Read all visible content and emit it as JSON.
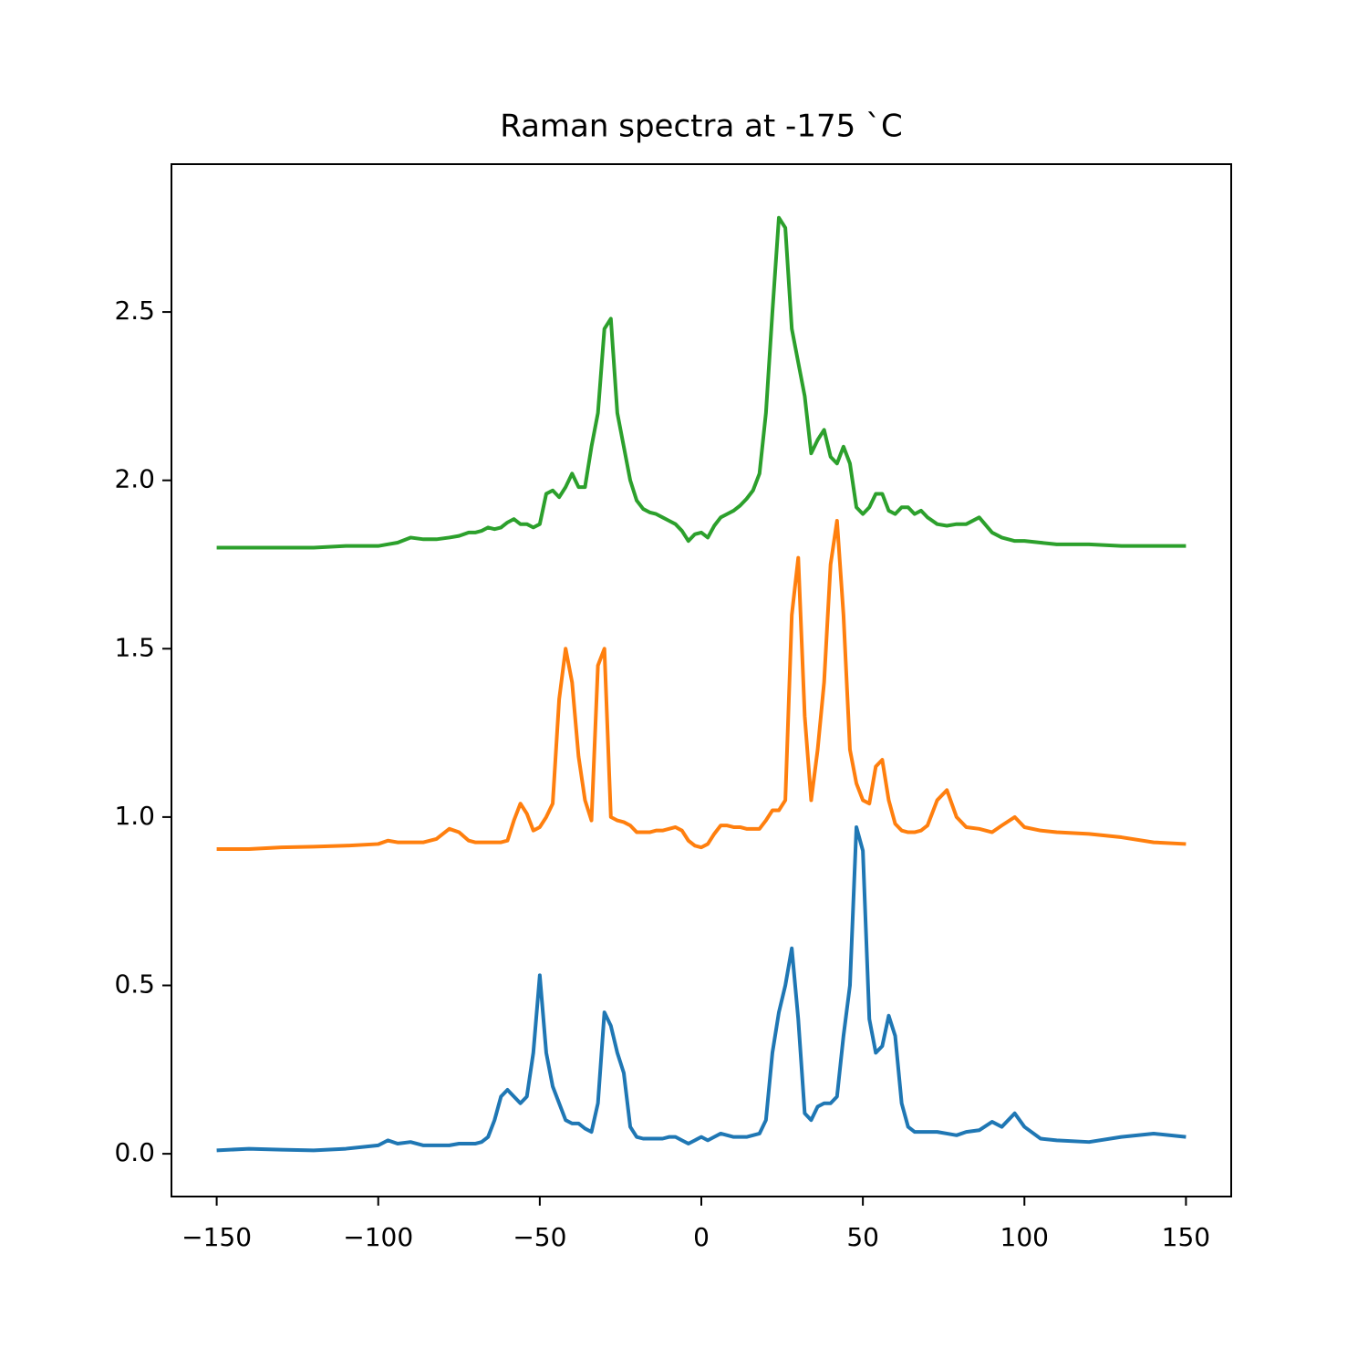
{
  "chart_data": {
    "type": "line",
    "title": "Raman spectra at -175 `C",
    "x": [
      -150,
      -140,
      -130,
      -120,
      -110,
      -100,
      -97,
      -94,
      -90,
      -86,
      -82,
      -78,
      -75,
      -72,
      -70,
      -68,
      -66,
      -64,
      -62,
      -60,
      -58,
      -56,
      -54,
      -52,
      -50,
      -48,
      -46,
      -44,
      -42,
      -40,
      -38,
      -36,
      -34,
      -32,
      -30,
      -28,
      -26,
      -24,
      -22,
      -20,
      -18,
      -16,
      -14,
      -12,
      -10,
      -8,
      -6,
      -4,
      -2,
      0,
      2,
      4,
      6,
      8,
      10,
      12,
      14,
      16,
      18,
      20,
      22,
      24,
      26,
      28,
      30,
      32,
      34,
      36,
      38,
      40,
      42,
      44,
      46,
      48,
      50,
      52,
      54,
      56,
      58,
      60,
      62,
      64,
      66,
      68,
      70,
      73,
      76,
      79,
      82,
      86,
      90,
      93,
      97,
      100,
      105,
      110,
      120,
      130,
      140,
      150
    ],
    "series": [
      {
        "color": "#1f77b4",
        "values": [
          0.01,
          0.015,
          0.012,
          0.01,
          0.015,
          0.025,
          0.04,
          0.03,
          0.035,
          0.025,
          0.025,
          0.025,
          0.03,
          0.03,
          0.03,
          0.035,
          0.05,
          0.1,
          0.17,
          0.19,
          0.17,
          0.15,
          0.17,
          0.3,
          0.53,
          0.3,
          0.2,
          0.15,
          0.1,
          0.09,
          0.09,
          0.075,
          0.065,
          0.15,
          0.42,
          0.38,
          0.3,
          0.24,
          0.08,
          0.05,
          0.045,
          0.045,
          0.045,
          0.045,
          0.05,
          0.05,
          0.04,
          0.03,
          0.04,
          0.05,
          0.04,
          0.05,
          0.06,
          0.055,
          0.05,
          0.05,
          0.05,
          0.055,
          0.06,
          0.1,
          0.3,
          0.42,
          0.5,
          0.61,
          0.4,
          0.12,
          0.1,
          0.14,
          0.15,
          0.15,
          0.17,
          0.35,
          0.5,
          0.97,
          0.9,
          0.4,
          0.3,
          0.32,
          0.41,
          0.35,
          0.15,
          0.08,
          0.065,
          0.065,
          0.065,
          0.065,
          0.06,
          0.055,
          0.065,
          0.07,
          0.095,
          0.08,
          0.12,
          0.08,
          0.045,
          0.04,
          0.035,
          0.05,
          0.06,
          0.05
        ]
      },
      {
        "color": "#ff7f0e",
        "values": [
          0.905,
          0.905,
          0.91,
          0.912,
          0.915,
          0.92,
          0.93,
          0.925,
          0.925,
          0.925,
          0.935,
          0.965,
          0.955,
          0.93,
          0.925,
          0.925,
          0.925,
          0.925,
          0.925,
          0.93,
          0.99,
          1.04,
          1.01,
          0.96,
          0.97,
          1.0,
          1.04,
          1.35,
          1.5,
          1.4,
          1.18,
          1.05,
          0.99,
          1.45,
          1.5,
          1.0,
          0.99,
          0.985,
          0.975,
          0.955,
          0.955,
          0.955,
          0.96,
          0.96,
          0.965,
          0.97,
          0.96,
          0.93,
          0.915,
          0.91,
          0.92,
          0.95,
          0.975,
          0.975,
          0.97,
          0.97,
          0.965,
          0.965,
          0.965,
          0.99,
          1.02,
          1.02,
          1.05,
          1.6,
          1.77,
          1.3,
          1.05,
          1.2,
          1.4,
          1.75,
          1.88,
          1.6,
          1.2,
          1.1,
          1.05,
          1.04,
          1.15,
          1.17,
          1.05,
          0.98,
          0.96,
          0.955,
          0.955,
          0.96,
          0.975,
          1.05,
          1.08,
          1.0,
          0.97,
          0.965,
          0.955,
          0.975,
          1.0,
          0.97,
          0.96,
          0.955,
          0.95,
          0.94,
          0.925,
          0.92
        ]
      },
      {
        "color": "#2ca02c",
        "values": [
          1.8,
          1.8,
          1.8,
          1.8,
          1.805,
          1.805,
          1.81,
          1.815,
          1.83,
          1.825,
          1.825,
          1.83,
          1.835,
          1.845,
          1.845,
          1.85,
          1.86,
          1.855,
          1.86,
          1.875,
          1.885,
          1.87,
          1.87,
          1.86,
          1.87,
          1.96,
          1.97,
          1.95,
          1.98,
          2.02,
          1.98,
          1.98,
          2.1,
          2.2,
          2.45,
          2.48,
          2.2,
          2.1,
          2.0,
          1.94,
          1.915,
          1.905,
          1.9,
          1.89,
          1.88,
          1.87,
          1.85,
          1.82,
          1.84,
          1.845,
          1.83,
          1.865,
          1.89,
          1.9,
          1.91,
          1.925,
          1.945,
          1.97,
          2.02,
          2.2,
          2.5,
          2.78,
          2.75,
          2.45,
          2.35,
          2.25,
          2.08,
          2.12,
          2.15,
          2.07,
          2.05,
          2.1,
          2.05,
          1.92,
          1.9,
          1.92,
          1.96,
          1.96,
          1.91,
          1.9,
          1.92,
          1.92,
          1.9,
          1.91,
          1.89,
          1.87,
          1.865,
          1.87,
          1.87,
          1.89,
          1.845,
          1.83,
          1.82,
          1.82,
          1.815,
          1.81,
          1.81,
          1.805,
          1.805,
          1.805
        ]
      }
    ],
    "xlim": [
      -164,
      164
    ],
    "ylim": [
      -0.127,
      2.939
    ],
    "xticks": [
      {
        "value": -150,
        "label": "−150"
      },
      {
        "value": -100,
        "label": "−100"
      },
      {
        "value": -50,
        "label": "−50"
      },
      0,
      50,
      100,
      150
    ],
    "yticks": [
      {
        "value": 0,
        "label": "0.0"
      },
      0.5,
      {
        "value": 1,
        "label": "1.0"
      },
      1.5,
      {
        "value": 2,
        "label": "2.0"
      },
      2.5
    ]
  }
}
